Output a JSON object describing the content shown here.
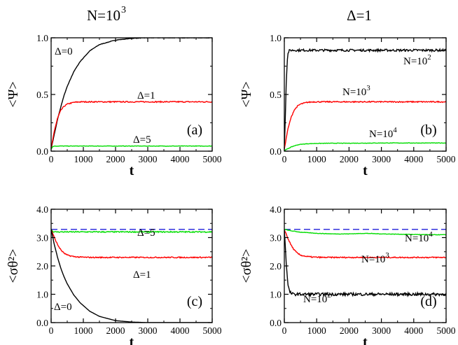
{
  "column_titles": {
    "left_prefix": "N=10",
    "left_exp": "3",
    "right": "Δ=1"
  },
  "chart_data": [
    {
      "panel": "(a)",
      "type": "line",
      "xlabel": "t",
      "ylabel": "<Ψ>",
      "xlim": [
        0,
        5000
      ],
      "ylim": [
        0,
        1.0
      ],
      "xticks": [
        "0",
        "1000",
        "2000",
        "3000",
        "4000",
        "5000"
      ],
      "yticks": [
        "0.0",
        "0.5",
        "1.0"
      ],
      "reference_line": null,
      "series": [
        {
          "name": "Δ=0",
          "color": "#000000",
          "label_base": "Δ=0",
          "label_exp": "",
          "noise": 0.002,
          "x": [
            0,
            100,
            200,
            300,
            400,
            500,
            700,
            900,
            1200,
            1500,
            2000,
            2500,
            3000,
            3500,
            4000,
            4500,
            5000
          ],
          "y": [
            0.02,
            0.15,
            0.28,
            0.39,
            0.49,
            0.57,
            0.7,
            0.79,
            0.885,
            0.94,
            0.98,
            0.995,
            1.0,
            1.0,
            1.0,
            1.0,
            1.0
          ]
        },
        {
          "name": "Δ=1",
          "color": "#ff0000",
          "label_base": "Δ=1",
          "label_exp": "",
          "noise": 0.005,
          "x": [
            0,
            100,
            200,
            300,
            400,
            500,
            700,
            900,
            1200,
            1500,
            2000,
            3000,
            4000,
            5000
          ],
          "y": [
            0.02,
            0.18,
            0.29,
            0.36,
            0.395,
            0.415,
            0.43,
            0.435,
            0.435,
            0.435,
            0.435,
            0.435,
            0.435,
            0.435
          ]
        },
        {
          "name": "Δ=5",
          "color": "#00dd00",
          "label_base": "Δ=5",
          "label_exp": "",
          "noise": 0.002,
          "x": [
            0,
            50,
            100,
            200,
            5000
          ],
          "y": [
            0.02,
            0.04,
            0.045,
            0.045,
            0.045
          ]
        }
      ]
    },
    {
      "panel": "(b)",
      "type": "line",
      "xlabel": "t",
      "ylabel": "<Ψ>",
      "xlim": [
        0,
        5000
      ],
      "ylim": [
        0,
        1.0
      ],
      "xticks": [
        "0",
        "1000",
        "2000",
        "3000",
        "4000",
        "5000"
      ],
      "yticks": [
        "0.0",
        "0.5",
        "1.0"
      ],
      "reference_line": null,
      "series": [
        {
          "name": "N=10^2",
          "color": "#000000",
          "label_base": "N=10",
          "label_exp": "2",
          "noise": 0.01,
          "x": [
            0,
            30,
            60,
            90,
            120,
            150,
            200,
            300,
            5000
          ],
          "y": [
            0.02,
            0.3,
            0.62,
            0.8,
            0.87,
            0.885,
            0.89,
            0.89,
            0.89
          ]
        },
        {
          "name": "N=10^3",
          "color": "#ff0000",
          "label_base": "N=10",
          "label_exp": "3",
          "noise": 0.005,
          "x": [
            0,
            100,
            200,
            300,
            400,
            500,
            700,
            900,
            1200,
            1500,
            2000,
            3000,
            4000,
            5000
          ],
          "y": [
            0.02,
            0.18,
            0.29,
            0.36,
            0.395,
            0.415,
            0.43,
            0.435,
            0.435,
            0.435,
            0.435,
            0.435,
            0.435,
            0.435
          ]
        },
        {
          "name": "N=10^4",
          "color": "#00dd00",
          "label_base": "N=10",
          "label_exp": "4",
          "noise": 0.002,
          "x": [
            0,
            100,
            200,
            300,
            400,
            500,
            700,
            1000,
            1500,
            2000,
            3000,
            4000,
            5000
          ],
          "y": [
            0.005,
            0.02,
            0.035,
            0.046,
            0.055,
            0.06,
            0.065,
            0.068,
            0.07,
            0.07,
            0.072,
            0.072,
            0.072
          ]
        }
      ]
    },
    {
      "panel": "(c)",
      "type": "line",
      "xlabel": "t",
      "ylabel": "<σθ²>",
      "xlim": [
        0,
        5000
      ],
      "ylim": [
        0,
        4.0
      ],
      "xticks": [
        "0",
        "1000",
        "2000",
        "3000",
        "4000",
        "5000"
      ],
      "yticks": [
        "0.0",
        "1.0",
        "2.0",
        "3.0",
        "4.0"
      ],
      "reference_line": {
        "y": 3.29,
        "color": "#3333dd",
        "style": "dashed"
      },
      "series": [
        {
          "name": "Δ=5",
          "color": "#00dd00",
          "label_base": "Δ=5",
          "label_exp": "",
          "noise": 0.02,
          "x": [
            0,
            50,
            100,
            200,
            5000
          ],
          "y": [
            3.29,
            3.22,
            3.2,
            3.2,
            3.2
          ]
        },
        {
          "name": "Δ=1",
          "color": "#ff0000",
          "label_base": "Δ=1",
          "label_exp": "",
          "noise": 0.02,
          "x": [
            0,
            100,
            200,
            300,
            400,
            500,
            700,
            900,
            1200,
            1500,
            2000,
            3000,
            4000,
            5000
          ],
          "y": [
            3.29,
            3.0,
            2.75,
            2.57,
            2.45,
            2.38,
            2.33,
            2.31,
            2.3,
            2.3,
            2.3,
            2.3,
            2.3,
            2.3
          ]
        },
        {
          "name": "Δ=0",
          "color": "#000000",
          "label_base": "Δ=0",
          "label_exp": "",
          "noise": 0.0,
          "x": [
            0,
            100,
            200,
            300,
            400,
            500,
            700,
            900,
            1200,
            1500,
            2000,
            2500,
            3000,
            5000
          ],
          "y": [
            3.29,
            2.75,
            2.3,
            1.92,
            1.62,
            1.37,
            0.98,
            0.7,
            0.4,
            0.22,
            0.07,
            0.02,
            0.0,
            0.0
          ]
        }
      ]
    },
    {
      "panel": "(d)",
      "type": "line",
      "xlabel": "t",
      "ylabel": "<σθ²>",
      "xlim": [
        0,
        5000
      ],
      "ylim": [
        0,
        4.0
      ],
      "xticks": [
        "0",
        "1000",
        "2000",
        "3000",
        "4000",
        "5000"
      ],
      "yticks": [
        "0.0",
        "1.0",
        "2.0",
        "3.0",
        "4.0"
      ],
      "reference_line": {
        "y": 3.29,
        "color": "#3333dd",
        "style": "dashed"
      },
      "series": [
        {
          "name": "N=10^4",
          "color": "#00dd00",
          "label_base": "N=10",
          "label_exp": "4",
          "noise": 0.008,
          "x": [
            0,
            200,
            500,
            1000,
            1500,
            2000,
            2500,
            3000,
            3500,
            4000,
            4500,
            5000
          ],
          "y": [
            3.29,
            3.24,
            3.19,
            3.15,
            3.13,
            3.13,
            3.15,
            3.13,
            3.12,
            3.11,
            3.1,
            3.1
          ]
        },
        {
          "name": "N=10^3",
          "color": "#ff0000",
          "label_base": "N=10",
          "label_exp": "3",
          "noise": 0.02,
          "x": [
            0,
            100,
            200,
            300,
            400,
            500,
            700,
            900,
            1200,
            1500,
            2000,
            3000,
            4000,
            5000
          ],
          "y": [
            3.29,
            3.0,
            2.75,
            2.57,
            2.45,
            2.38,
            2.33,
            2.31,
            2.3,
            2.3,
            2.3,
            2.3,
            2.3,
            2.3
          ]
        },
        {
          "name": "N=10^2",
          "color": "#000000",
          "label_base": "N=10",
          "label_exp": "2",
          "noise": 0.05,
          "x": [
            0,
            30,
            60,
            90,
            120,
            160,
            220,
            300,
            5000
          ],
          "y": [
            3.29,
            2.7,
            2.1,
            1.6,
            1.3,
            1.1,
            1.02,
            1.0,
            1.0
          ]
        }
      ]
    }
  ]
}
